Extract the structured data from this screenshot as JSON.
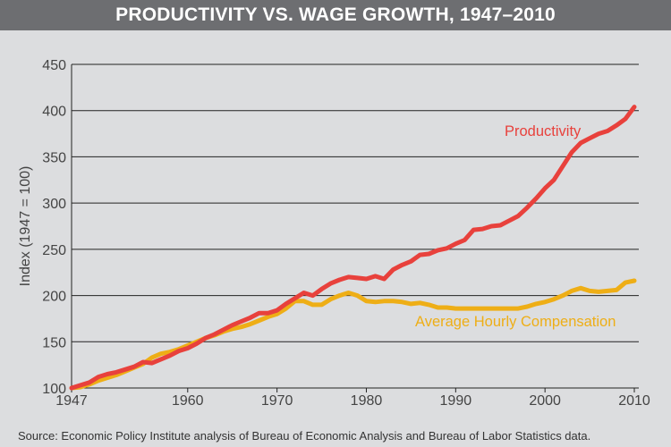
{
  "header": {
    "title": "PRODUCTIVITY VS. WAGE GROWTH, 1947–2010"
  },
  "footer": {
    "source": "Source: Economic Policy Institute analysis of Bureau of Economic Analysis and Bureau of Labor Statistics data."
  },
  "colors": {
    "productivity": "#e8413c",
    "compensation": "#eeae16",
    "grid": "#222222"
  },
  "chart_data": {
    "type": "line",
    "title": "PRODUCTIVITY VS. WAGE GROWTH, 1947–2010",
    "xlabel": "",
    "ylabel": "Index (1947 = 100)",
    "xlim": [
      1947,
      2010.5
    ],
    "ylim": [
      100,
      450
    ],
    "xticks": [
      1947,
      1960,
      1970,
      1980,
      1990,
      2000,
      2010
    ],
    "yticks": [
      100,
      150,
      200,
      250,
      300,
      350,
      400,
      450
    ],
    "grid": "horizontal",
    "legend": "inline labels",
    "series": [
      {
        "name": "Productivity",
        "x": [
          1947,
          1948,
          1949,
          1950,
          1951,
          1952,
          1953,
          1954,
          1955,
          1956,
          1957,
          1958,
          1959,
          1960,
          1961,
          1962,
          1963,
          1964,
          1965,
          1966,
          1967,
          1968,
          1969,
          1970,
          1971,
          1972,
          1973,
          1974,
          1975,
          1976,
          1977,
          1978,
          1979,
          1980,
          1981,
          1982,
          1983,
          1984,
          1985,
          1986,
          1987,
          1988,
          1989,
          1990,
          1991,
          1992,
          1993,
          1994,
          1995,
          1996,
          1997,
          1998,
          1999,
          2000,
          2001,
          2002,
          2003,
          2004,
          2005,
          2006,
          2007,
          2008,
          2009,
          2010
        ],
        "values": [
          100,
          103,
          106,
          112,
          115,
          117,
          120,
          123,
          128,
          127,
          131,
          135,
          140,
          143,
          148,
          154,
          158,
          163,
          168,
          172,
          176,
          181,
          181,
          184,
          191,
          197,
          203,
          200,
          207,
          213,
          217,
          220,
          219,
          218,
          221,
          218,
          228,
          233,
          237,
          244,
          245,
          249,
          251,
          256,
          260,
          271,
          272,
          275,
          276,
          281,
          286,
          295,
          305,
          316,
          325,
          340,
          355,
          365,
          370,
          375,
          378,
          384,
          391,
          404
        ]
      },
      {
        "name": "Average Hourly Compensation",
        "x": [
          1947,
          1948,
          1949,
          1950,
          1951,
          1952,
          1953,
          1954,
          1955,
          1956,
          1957,
          1958,
          1959,
          1960,
          1961,
          1962,
          1963,
          1964,
          1965,
          1966,
          1967,
          1968,
          1969,
          1970,
          1971,
          1972,
          1973,
          1974,
          1975,
          1976,
          1977,
          1978,
          1979,
          1980,
          1981,
          1982,
          1983,
          1984,
          1985,
          1986,
          1987,
          1988,
          1989,
          1990,
          1991,
          1992,
          1993,
          1994,
          1995,
          1996,
          1997,
          1998,
          1999,
          2000,
          2001,
          2002,
          2003,
          2004,
          2005,
          2006,
          2007,
          2008,
          2009,
          2010
        ],
        "values": [
          100,
          101,
          104,
          108,
          111,
          114,
          118,
          122,
          126,
          133,
          137,
          139,
          142,
          146,
          150,
          154,
          157,
          161,
          164,
          166,
          169,
          173,
          177,
          180,
          186,
          194,
          194,
          190,
          190,
          196,
          200,
          203,
          200,
          194,
          193,
          194,
          194,
          193,
          191,
          192,
          190,
          187,
          187,
          186,
          186,
          186,
          186,
          186,
          186,
          186,
          186,
          188,
          191,
          193,
          196,
          200,
          205,
          208,
          205,
          204,
          205,
          206,
          214,
          216
        ]
      }
    ],
    "annotations": [
      {
        "text": "Productivity",
        "series": "Productivity"
      },
      {
        "text": "Average Hourly Compensation",
        "series": "Average Hourly Compensation"
      }
    ]
  }
}
